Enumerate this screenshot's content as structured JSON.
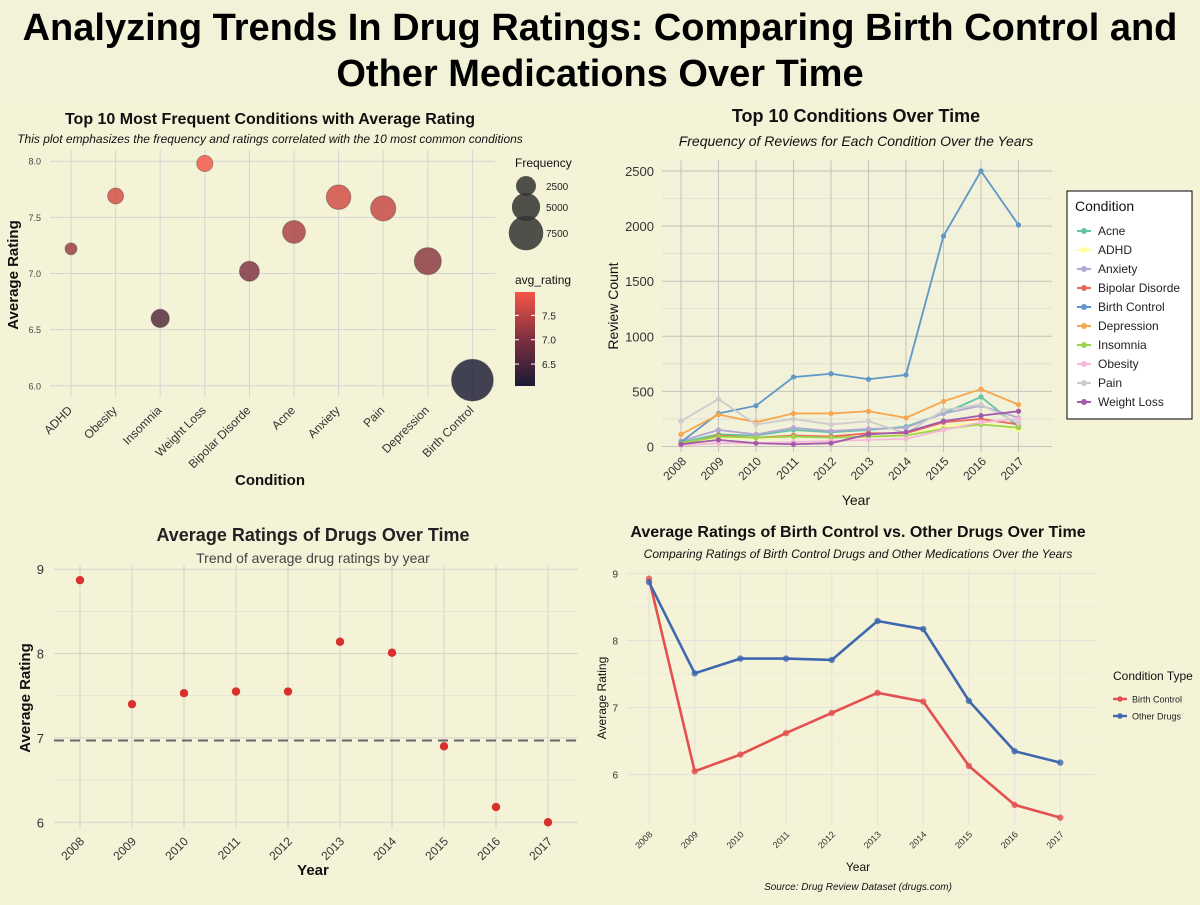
{
  "page": {
    "title_line1": "Analyzing Trends In Drug Ratings: Comparing Birth Control and",
    "title_line2": "Other Medications Over Time"
  },
  "chart_data": [
    {
      "type": "scatter",
      "title": "Top 10 Most Frequent Conditions with Average Rating",
      "subtitle": "This plot emphasizes the frequency and ratings correlated with the 10 most common conditions",
      "xlabel": "Condition",
      "ylabel": "Average Rating",
      "categories": [
        "ADHD",
        "Obesity",
        "Insomnia",
        "Weight Loss",
        "Bipolar Disorde",
        "Acne",
        "Anxiety",
        "Pain",
        "Depression",
        "Birth Control"
      ],
      "values": [
        7.22,
        7.69,
        6.6,
        7.98,
        7.02,
        7.37,
        7.68,
        7.58,
        7.11,
        6.05
      ],
      "frequency": [
        900,
        1600,
        2100,
        1650,
        2500,
        3300,
        3800,
        4000,
        4600,
        11000
      ],
      "y_ticks": [
        6.0,
        6.5,
        7.0,
        7.5,
        8.0
      ],
      "y_tick_labels": [
        "6.0",
        "6.5",
        "7.0",
        "7.5",
        "8.0"
      ],
      "ylim": [
        5.9,
        8.1
      ],
      "grid": true,
      "legend_size": {
        "title": "Frequency",
        "values": [
          2500,
          5000,
          7500
        ],
        "labels": [
          "2500",
          "5000",
          "7500"
        ]
      },
      "legend_color": {
        "title": "avg_rating",
        "ticks": [
          6.5,
          7.0,
          7.5
        ],
        "labels": [
          "6.5",
          "7.0",
          "7.5"
        ],
        "range": [
          6.05,
          7.98
        ],
        "low_color": "#1a1a35",
        "mid_color": "#7e3040",
        "high_color": "#f55545"
      }
    },
    {
      "type": "line",
      "title": "Top 10 Conditions Over Time",
      "subtitle": "Frequency of Reviews for Each Condition Over the Years",
      "xlabel": "Year",
      "ylabel": "Review Count",
      "x": [
        "2008",
        "2009",
        "2010",
        "2011",
        "2012",
        "2013",
        "2014",
        "2015",
        "2016",
        "2017"
      ],
      "y_ticks": [
        0,
        500,
        1000,
        1500,
        2000,
        2500
      ],
      "y_tick_labels": [
        "0",
        "500",
        "1000",
        "1500",
        "2000",
        "2500"
      ],
      "ylim": [
        -50,
        2600
      ],
      "grid": true,
      "legend_title": "Condition",
      "legend_placement": "right",
      "series": [
        {
          "name": "Acne",
          "color": "#66c2a5",
          "values": [
            40,
            110,
            100,
            150,
            130,
            150,
            180,
            300,
            450,
            180
          ]
        },
        {
          "name": "ADHD",
          "color": "#ffff99",
          "values": [
            30,
            80,
            70,
            90,
            80,
            90,
            100,
            180,
            220,
            150
          ]
        },
        {
          "name": "Anxiety",
          "color": "#b3a8d5",
          "values": [
            50,
            150,
            110,
            170,
            140,
            160,
            170,
            300,
            370,
            260
          ]
        },
        {
          "name": "Bipolar Disorde",
          "color": "#e8675a",
          "values": [
            20,
            100,
            80,
            100,
            90,
            120,
            120,
            220,
            250,
            200
          ]
        },
        {
          "name": "Birth Control",
          "color": "#5f97c8",
          "values": [
            40,
            300,
            370,
            630,
            660,
            610,
            650,
            1910,
            2500,
            2010
          ]
        },
        {
          "name": "Depression",
          "color": "#f6a64e",
          "values": [
            110,
            290,
            220,
            300,
            300,
            320,
            260,
            410,
            520,
            380
          ]
        },
        {
          "name": "Insomnia",
          "color": "#9ed34f",
          "values": [
            30,
            90,
            80,
            90,
            80,
            90,
            100,
            160,
            200,
            170
          ]
        },
        {
          "name": "Obesity",
          "color": "#f5b8d8",
          "values": [
            10,
            30,
            30,
            40,
            50,
            60,
            70,
            150,
            220,
            250
          ]
        },
        {
          "name": "Pain",
          "color": "#cccccc",
          "values": [
            230,
            430,
            200,
            250,
            200,
            230,
            120,
            330,
            380,
            210
          ]
        },
        {
          "name": "Weight Loss",
          "color": "#a25aaa",
          "values": [
            20,
            60,
            30,
            20,
            30,
            110,
            130,
            230,
            280,
            320
          ]
        }
      ]
    },
    {
      "type": "scatter",
      "title": "Average Ratings of Drugs Over Time",
      "subtitle": "Trend of average drug ratings by year",
      "xlabel": "Year",
      "ylabel": "Average Rating",
      "x": [
        "2008",
        "2009",
        "2010",
        "2011",
        "2012",
        "2013",
        "2014",
        "2015",
        "2016",
        "2017"
      ],
      "values": [
        8.87,
        7.4,
        7.53,
        7.55,
        7.55,
        8.14,
        8.01,
        6.9,
        6.18,
        6.0
      ],
      "reference_line": 6.97,
      "y_ticks": [
        6,
        7,
        8,
        9
      ],
      "y_tick_labels": [
        "6",
        "7",
        "8",
        "9"
      ],
      "ylim": [
        5.92,
        9.05
      ],
      "grid": true
    },
    {
      "type": "line",
      "title": "Average Ratings of Birth Control vs. Other Drugs Over Time",
      "subtitle": "Comparing Ratings of Birth Control Drugs and Other Medications Over the Years",
      "xlabel": "Year",
      "ylabel": "Average Rating",
      "caption": "Source: Drug Review Dataset (drugs.com)",
      "x": [
        "2008",
        "2009",
        "2010",
        "2011",
        "2012",
        "2013",
        "2014",
        "2015",
        "2016",
        "2017"
      ],
      "y_ticks": [
        6,
        7,
        8,
        9
      ],
      "y_tick_labels": [
        "6",
        "7",
        "8",
        "9"
      ],
      "ylim": [
        5.25,
        9.05
      ],
      "grid": true,
      "legend_title": "Condition Type",
      "legend_placement": "right",
      "series": [
        {
          "name": "Birth Control",
          "color": "#e45050",
          "values": [
            8.92,
            6.05,
            6.3,
            6.62,
            6.92,
            7.22,
            7.09,
            6.13,
            5.55,
            5.36
          ]
        },
        {
          "name": "Other Drugs",
          "color": "#3f68ae",
          "values": [
            8.87,
            7.51,
            7.73,
            7.73,
            7.71,
            8.29,
            8.17,
            7.1,
            6.35,
            6.18
          ]
        }
      ]
    }
  ]
}
